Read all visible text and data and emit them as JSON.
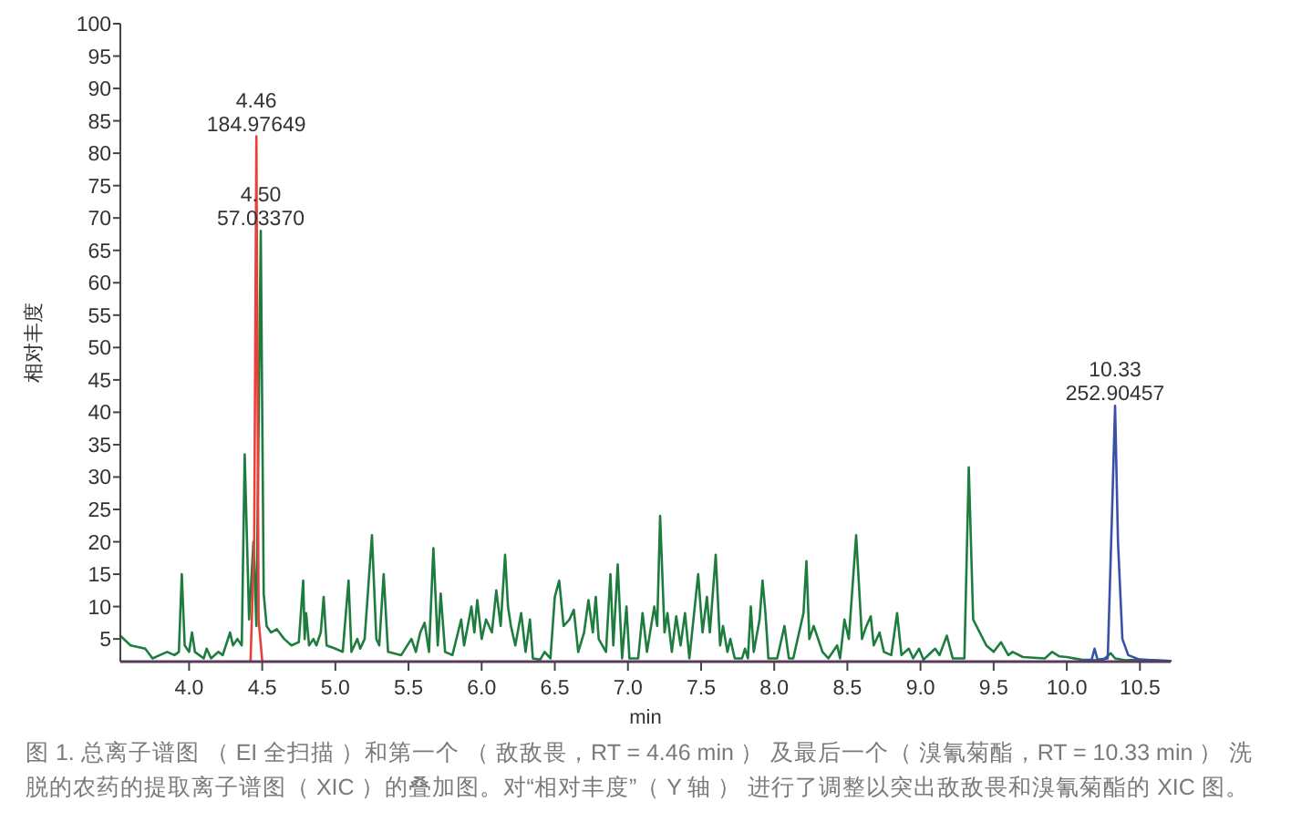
{
  "chart_data": {
    "type": "line",
    "xlabel": "min",
    "ylabel": "相对丰度",
    "xlim": [
      3.53,
      10.71
    ],
    "ylim": [
      1.5,
      100
    ],
    "xticks": [
      {
        "value": 4,
        "label": "4.0"
      },
      {
        "value": 4.5,
        "label": "4.5"
      },
      {
        "value": 5,
        "label": "5.0"
      },
      {
        "value": 5.5,
        "label": "5.5"
      },
      {
        "value": 6,
        "label": "6.0"
      },
      {
        "value": 6.5,
        "label": "6.5"
      },
      {
        "value": 7,
        "label": "7.0"
      },
      {
        "value": 7.5,
        "label": "7.5"
      },
      {
        "value": 8,
        "label": "8.0"
      },
      {
        "value": 8.5,
        "label": "8.5"
      },
      {
        "value": 9,
        "label": "9.0"
      },
      {
        "value": 9.5,
        "label": "9.5"
      },
      {
        "value": 10,
        "label": "10.0"
      },
      {
        "value": 10.5,
        "label": "10.5"
      }
    ],
    "yticks": [
      5,
      10,
      15,
      20,
      25,
      30,
      35,
      40,
      45,
      50,
      55,
      60,
      65,
      70,
      75,
      80,
      85,
      90,
      95,
      100
    ],
    "series": [
      {
        "color": "#1e7d3e",
        "x": [
          3.53,
          3.6,
          3.7,
          3.75,
          3.8,
          3.85,
          3.9,
          3.93,
          3.95,
          3.97,
          4.0,
          4.02,
          4.04,
          4.1,
          4.12,
          4.15,
          4.2,
          4.23,
          4.28,
          4.3,
          4.33,
          4.36,
          4.38,
          4.41,
          4.44,
          4.46,
          4.49,
          4.51,
          4.53,
          4.56,
          4.6,
          4.65,
          4.7,
          4.75,
          4.78,
          4.79,
          4.8,
          4.82,
          4.85,
          4.87,
          4.9,
          4.92,
          4.94,
          5.0,
          5.05,
          5.09,
          5.11,
          5.15,
          5.17,
          5.2,
          5.25,
          5.28,
          5.3,
          5.33,
          5.36,
          5.45,
          5.52,
          5.55,
          5.58,
          5.61,
          5.64,
          5.67,
          5.7,
          5.72,
          5.75,
          5.8,
          5.86,
          5.88,
          5.93,
          5.95,
          5.97,
          6.0,
          6.03,
          6.07,
          6.1,
          6.13,
          6.16,
          6.18,
          6.2,
          6.23,
          6.27,
          6.3,
          6.33,
          6.35,
          6.4,
          6.43,
          6.47,
          6.5,
          6.53,
          6.56,
          6.6,
          6.63,
          6.66,
          6.7,
          6.73,
          6.76,
          6.78,
          6.8,
          6.85,
          6.88,
          6.9,
          6.93,
          6.96,
          6.99,
          7.01,
          7.07,
          7.1,
          7.13,
          7.18,
          7.2,
          7.22,
          7.25,
          7.27,
          7.3,
          7.33,
          7.36,
          7.39,
          7.42,
          7.48,
          7.51,
          7.54,
          7.56,
          7.6,
          7.63,
          7.65,
          7.68,
          7.7,
          7.73,
          7.78,
          7.8,
          7.82,
          7.84,
          7.86,
          7.9,
          7.92,
          7.94,
          7.96,
          8.02,
          8.07,
          8.1,
          8.13,
          8.2,
          8.22,
          8.24,
          8.27,
          8.3,
          8.33,
          8.37,
          8.43,
          8.45,
          8.48,
          8.51,
          8.56,
          8.6,
          8.63,
          8.66,
          8.68,
          8.72,
          8.75,
          8.8,
          8.84,
          8.87,
          8.92,
          8.95,
          8.99,
          9.02,
          9.1,
          9.13,
          9.18,
          9.22,
          9.3,
          9.33,
          9.36,
          9.45,
          9.5,
          9.55,
          9.6,
          9.63,
          9.7,
          9.85,
          9.9,
          9.95,
          10.0,
          10.1,
          10.2,
          10.25,
          10.3,
          10.33,
          10.4,
          10.5,
          10.7
        ],
        "values": [
          5.5,
          4,
          3.5,
          2,
          2.5,
          3,
          2.5,
          3,
          15,
          4,
          3,
          6,
          3,
          2,
          3.5,
          2,
          3,
          2.5,
          6,
          4,
          5,
          4,
          33.5,
          8,
          20,
          7,
          68,
          12,
          7,
          6,
          6.5,
          5,
          4,
          4.5,
          14,
          5,
          9,
          4,
          5,
          4,
          6,
          11.5,
          4,
          3.5,
          3,
          14,
          3,
          5,
          3.5,
          5,
          21,
          5,
          4,
          15,
          3,
          2.5,
          5,
          3,
          6,
          7.5,
          3,
          19,
          4,
          12,
          3,
          2.5,
          8,
          4,
          10,
          6,
          11,
          5,
          8,
          6,
          12.5,
          7,
          18,
          10,
          7,
          4,
          9,
          3,
          8,
          2,
          1.8,
          3,
          2,
          11.5,
          14,
          7,
          8,
          9.5,
          3,
          6,
          11,
          6,
          11.5,
          5,
          3,
          15,
          4,
          16.5,
          2,
          10,
          2,
          2,
          9,
          3,
          10,
          7,
          24,
          6,
          9,
          3,
          8.5,
          4,
          9,
          2,
          15,
          6,
          11.5,
          6,
          18,
          4,
          7,
          3,
          5,
          2,
          2,
          3.5,
          2,
          10,
          3,
          8,
          14,
          9,
          2,
          2,
          7,
          2,
          2,
          9,
          17,
          5,
          7,
          5,
          3,
          2,
          4,
          2,
          8,
          5,
          21,
          5,
          7,
          8.5,
          4,
          6,
          3,
          2.5,
          9,
          2.5,
          3.5,
          2,
          3.5,
          1.8,
          3.5,
          2.5,
          5.5,
          2,
          2,
          31.5,
          8,
          4,
          3,
          4.5,
          2.5,
          3,
          2.2,
          2,
          3,
          2.3,
          2.2,
          1.8,
          1.7,
          1.8,
          2.8,
          2,
          1.7,
          1.8,
          1.6
        ]
      },
      {
        "color": "#e8413c",
        "x": [
          4.42,
          4.445,
          4.46,
          4.475,
          4.5
        ],
        "values": [
          1.6,
          20,
          82.6,
          8,
          1.6
        ]
      },
      {
        "color": "#3a50a8",
        "x": [
          10.1,
          10.17,
          10.19,
          10.21,
          10.28,
          10.31,
          10.33,
          10.35,
          10.38,
          10.42,
          10.5,
          10.71
        ],
        "values": [
          1.6,
          1.8,
          3.5,
          1.8,
          2,
          25,
          41,
          20,
          5,
          2.5,
          1.8,
          1.6
        ]
      }
    ],
    "annotations": [
      {
        "text": "4.46\n184.97649",
        "x": 4.46,
        "y": 82.6
      },
      {
        "text": "4.50\n57.03370",
        "x": 4.49,
        "y": 68
      },
      {
        "text": "10.33\n252.90457",
        "x": 10.33,
        "y": 41
      },
      "图 1. 总离子谱图 （ EI 全扫描 ）和第一个 （ 敌敌畏，RT = 4.46 min ） 及最后一个（ 溴氰菊酯，RT = 10.33 min ） 洗脱的农药的提取离子谱图（ XIC ）的叠加图。对“相对丰度”（ Y 轴 ） 进行了调整以突出敌敌畏和溴氰菊酯的 XIC 图。"
    ]
  }
}
